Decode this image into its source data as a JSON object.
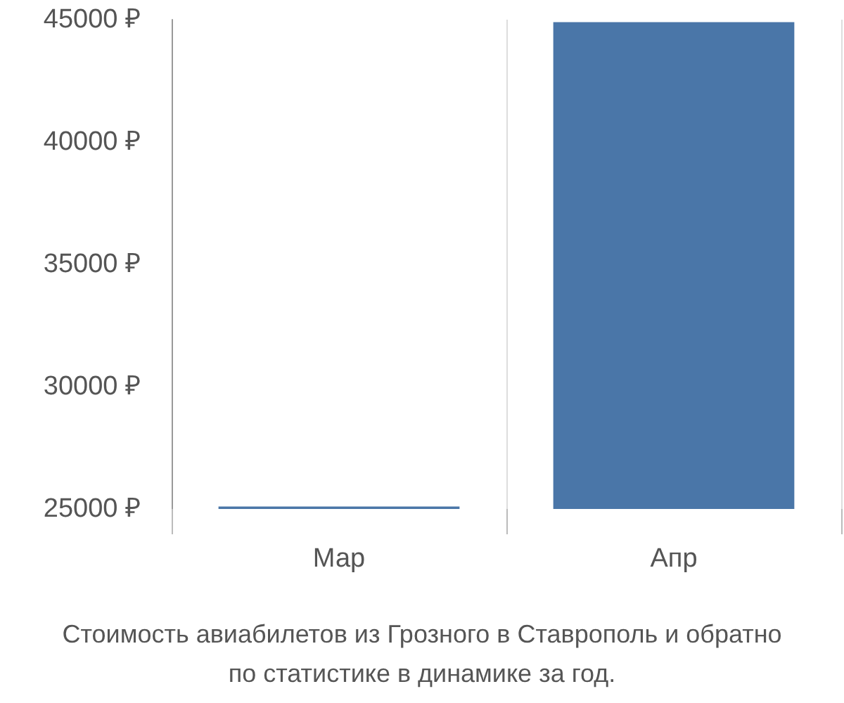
{
  "chart_data": {
    "type": "bar",
    "title": "Стоимость авиабилетов из Грозного в Ставрополь и обратно по статистике в динамике за год.",
    "categories": [
      "Мар",
      "Апр"
    ],
    "values": [
      25100,
      44900
    ],
    "color": "#4a76a8",
    "ylim": [
      25000,
      45000
    ],
    "yticks": [
      {
        "value": 25000,
        "label": "25000 ₽"
      },
      {
        "value": 30000,
        "label": "30000 ₽"
      },
      {
        "value": 35000,
        "label": "35000 ₽"
      },
      {
        "value": 40000,
        "label": "40000 ₽"
      },
      {
        "value": 45000,
        "label": "45000 ₽"
      }
    ],
    "grid": "x"
  }
}
